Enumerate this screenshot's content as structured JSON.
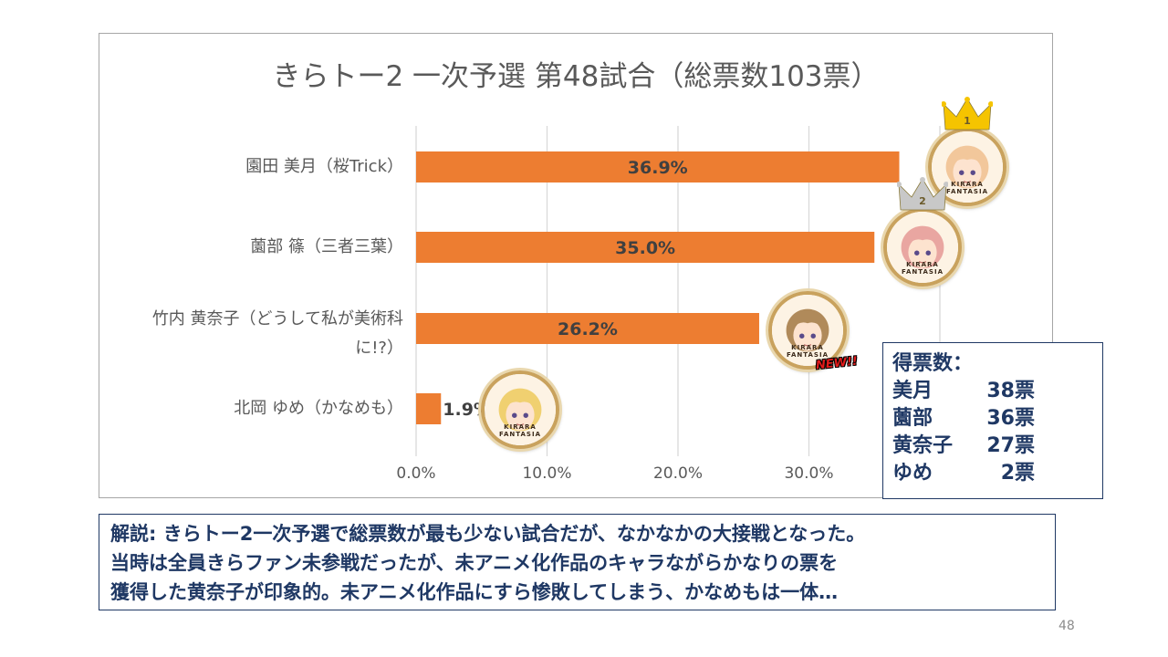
{
  "chart_data": {
    "type": "bar",
    "orientation": "horizontal",
    "title": "きらトー2 一次予選 第48試合（総票数103票）",
    "categories": [
      "園田 美月（桜Trick）",
      "薗部 篠（三者三葉）",
      "竹内 黄奈子（どうして私が美術科に!?）",
      "北岡 ゆめ（かなめも）"
    ],
    "category_lines": [
      [
        "園田 美月（桜Trick）"
      ],
      [
        "薗部 篠（三者三葉）"
      ],
      [
        "竹内 黄奈子（どうして私が美術科",
        "に!?）"
      ],
      [
        "北岡 ゆめ（かなめも）"
      ]
    ],
    "values": [
      36.9,
      35.0,
      26.2,
      1.9
    ],
    "data_labels": [
      "36.9%",
      "35.0%",
      "26.2%",
      "1.9%"
    ],
    "xlim": [
      0,
      40
    ],
    "x_ticks": [
      "0.0%",
      "10.0%",
      "20.0%",
      "30.0%"
    ],
    "x_tick_values": [
      0,
      10,
      20,
      30
    ],
    "grid": true,
    "bar_color": "#ed7d31"
  },
  "badges": [
    {
      "text": "KIRARA FANTASIA",
      "rank": "1",
      "crown_color": "#f5c400",
      "hair_color": "#f2c79b"
    },
    {
      "text": "KIRARA FANTASIA",
      "rank": "2",
      "crown_color": "#c8c8c8",
      "hair_color": "#e9a6a1"
    },
    {
      "text": "KIRARA FANTASIA",
      "rank": "",
      "crown_color": "",
      "hair_color": "#b08a5a"
    },
    {
      "text": "KIRARA FANTASIA",
      "rank": "",
      "crown_color": "",
      "hair_color": "#f0d070"
    }
  ],
  "new_tag": "NEW!!",
  "tally": {
    "title": "得票数：",
    "rows": [
      {
        "name": "美月",
        "votes": "38票"
      },
      {
        "name": "薗部",
        "votes": "36票"
      },
      {
        "name": "黄奈子",
        "votes": "27票"
      },
      {
        "name": "ゆめ",
        "votes": "2票"
      }
    ]
  },
  "commentary": {
    "lines": [
      "解説: きらトー2一次予選で総票数が最も少ない試合だが、なかなかの大接戦となった。",
      "当時は全員きらファン未参戦だったが、未アニメ化作品のキャラながらかなりの票を",
      "獲得した黄奈子が印象的。未アニメ化作品にすら惨敗してしまう、かなめもは一体…"
    ]
  },
  "slide_number": "48",
  "colors": {
    "accent_navy": "#1f3864",
    "bar": "#ed7d31",
    "text_gray": "#595959"
  }
}
